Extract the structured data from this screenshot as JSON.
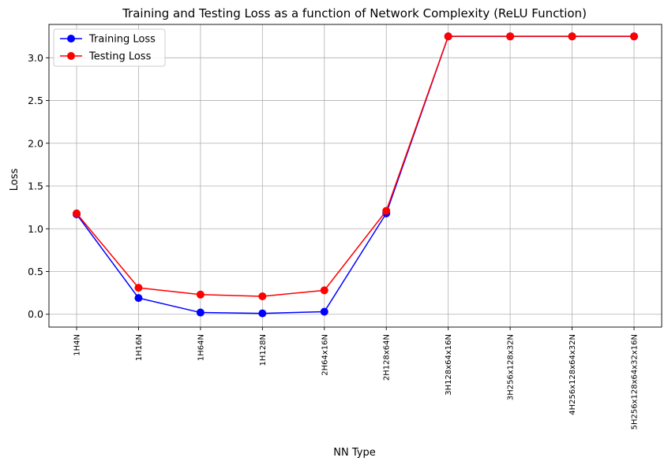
{
  "chart_data": {
    "type": "line",
    "title": "Training and Testing Loss as a function of Network Complexity (ReLU Function)",
    "xlabel": "NN Type",
    "ylabel": "Loss",
    "categories": [
      "1H4N",
      "1H16N",
      "1H64N",
      "1H128N",
      "2H64x16N",
      "2H128x64N",
      "3H128x64x16N",
      "3H256x128x32N",
      "4H256x128x64x32N",
      "5H256x128x64x32x16N"
    ],
    "yticks": [
      "0.0",
      "0.5",
      "1.0",
      "1.5",
      "2.0",
      "2.5",
      "3.0"
    ],
    "ylim": [
      -0.15,
      3.39
    ],
    "grid": true,
    "legend_position": "upper-left",
    "series": [
      {
        "name": "Training Loss",
        "color": "#0000ff",
        "marker": "circle",
        "values": [
          1.17,
          0.19,
          0.02,
          0.01,
          0.03,
          1.18,
          3.25,
          3.25,
          3.25,
          3.25
        ]
      },
      {
        "name": "Testing Loss",
        "color": "#ff0000",
        "marker": "circle",
        "values": [
          1.18,
          0.31,
          0.23,
          0.21,
          0.28,
          1.21,
          3.25,
          3.25,
          3.25,
          3.25
        ]
      }
    ]
  }
}
